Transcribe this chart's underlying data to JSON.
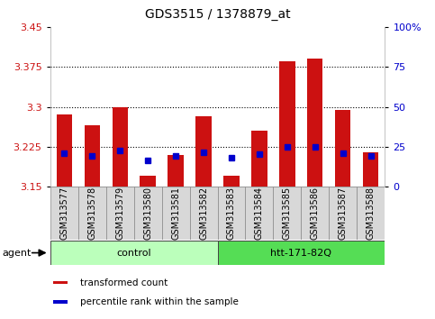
{
  "title": "GDS3515 / 1378879_at",
  "samples": [
    "GSM313577",
    "GSM313578",
    "GSM313579",
    "GSM313580",
    "GSM313581",
    "GSM313582",
    "GSM313583",
    "GSM313584",
    "GSM313585",
    "GSM313586",
    "GSM313587",
    "GSM313588"
  ],
  "transformed_count": [
    3.285,
    3.265,
    3.3,
    3.17,
    3.21,
    3.283,
    3.17,
    3.255,
    3.385,
    3.39,
    3.295,
    3.215
  ],
  "percentile_rank": [
    3.213,
    3.208,
    3.218,
    3.2,
    3.208,
    3.215,
    3.205,
    3.212,
    3.224,
    3.225,
    3.213,
    3.208
  ],
  "y_min": 3.15,
  "y_max": 3.45,
  "y_ticks_left": [
    3.15,
    3.225,
    3.3,
    3.375,
    3.45
  ],
  "y_ticks_right": [
    0,
    25,
    50,
    75,
    100
  ],
  "y_ticks_right_labels": [
    "0",
    "25",
    "50",
    "75",
    "100%"
  ],
  "dotted_lines": [
    3.225,
    3.3,
    3.375
  ],
  "bar_color": "#cc1111",
  "dot_color": "#0000cc",
  "bar_bottom": 3.15,
  "bar_width": 0.55,
  "group_control": {
    "label": "control",
    "start": 0,
    "end": 5,
    "color": "#bbffbb"
  },
  "group_treat": {
    "label": "htt-171-82Q",
    "start": 6,
    "end": 11,
    "color": "#55dd55"
  },
  "agent_label": "agent",
  "legend_items": [
    {
      "label": "transformed count",
      "color": "#cc1111"
    },
    {
      "label": "percentile rank within the sample",
      "color": "#0000cc"
    }
  ],
  "background_color": "#ffffff",
  "plot_bg": "#ffffff",
  "tick_label_color_left": "#cc1111",
  "tick_label_color_right": "#0000cc",
  "spine_color": "#aaaaaa",
  "title_fontsize": 10,
  "label_fontsize": 7,
  "ytick_fontsize": 8
}
